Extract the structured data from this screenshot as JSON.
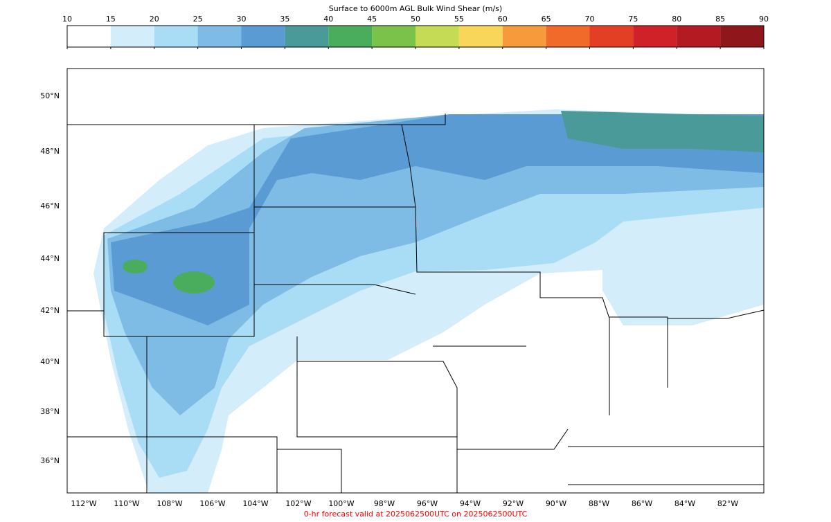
{
  "colorbar": {
    "title": "Surface to 6000m AGL Bulk Wind Shear (m/s)",
    "ticks": [
      10,
      15,
      20,
      25,
      30,
      35,
      40,
      45,
      50,
      55,
      60,
      65,
      70,
      75,
      80,
      85,
      90
    ],
    "colors": [
      "#ffffff",
      "#d4edfa",
      "#a9dcf5",
      "#7ebbe5",
      "#5a9bd3",
      "#4a9a9a",
      "#4aad5e",
      "#7bc24a",
      "#c6db55",
      "#f8d65a",
      "#f79a3b",
      "#f26a2a",
      "#e33f25",
      "#d02028",
      "#b31a22",
      "#8f171b"
    ]
  },
  "map": {
    "lat_labels": [
      "50°N",
      "48°N",
      "46°N",
      "44°N",
      "42°N",
      "40°N",
      "38°N",
      "36°N"
    ],
    "lon_labels": [
      "112°W",
      "110°W",
      "108°W",
      "106°W",
      "104°W",
      "102°W",
      "100°W",
      "98°W",
      "96°W",
      "94°W",
      "92°W",
      "90°W",
      "88°W",
      "86°W",
      "84°W",
      "82°W"
    ]
  },
  "footer": "0-hr forecast valid at 2025062500UTC on 2025062500UTC"
}
